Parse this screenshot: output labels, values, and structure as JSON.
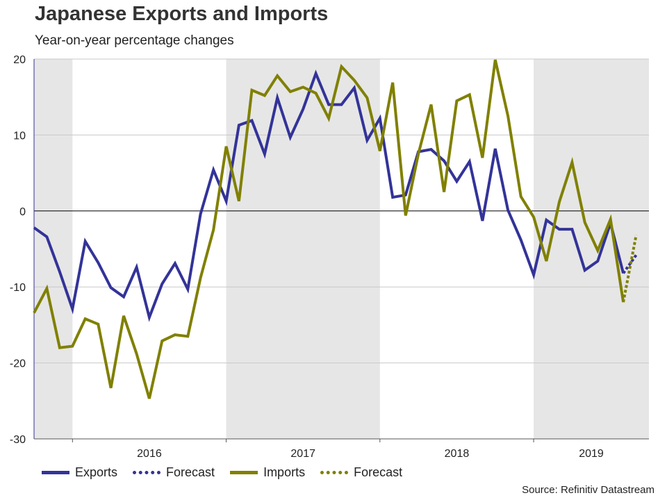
{
  "title": "Japanese Exports and Imports",
  "subtitle": "Year-on-year percentage changes",
  "source": "Source: Refinitiv Datastream",
  "colors": {
    "exports": "#333399",
    "imports": "#808000",
    "shade": "#e6e6e6"
  },
  "legend": [
    {
      "label": "Exports",
      "series": "exports",
      "style": "solid"
    },
    {
      "label": "Forecast",
      "series": "exports",
      "style": "dotted"
    },
    {
      "label": "Imports",
      "series": "imports",
      "style": "solid"
    },
    {
      "label": "Forecast",
      "series": "imports",
      "style": "dotted"
    }
  ],
  "chart_data": {
    "type": "line",
    "title": "Japanese Exports and Imports",
    "subtitle": "Year-on-year percentage changes",
    "ylim": [
      -30,
      20
    ],
    "yticks": [
      20,
      10,
      0,
      -10,
      -20,
      -30
    ],
    "xlim": [
      2015.75,
      2019.75
    ],
    "x_ticks": [
      2016,
      2017,
      2018,
      2019
    ],
    "x_tick_labels": [
      "2016",
      "2017",
      "2018",
      "2019"
    ],
    "shaded_ranges": [
      [
        2015.75,
        2016
      ],
      [
        2017,
        2018
      ],
      [
        2019,
        2019.75
      ]
    ],
    "grid": true,
    "legend_position": "bottom",
    "x": [
      2015.75,
      2015.833,
      2015.917,
      2016.0,
      2016.083,
      2016.167,
      2016.25,
      2016.333,
      2016.417,
      2016.5,
      2016.583,
      2016.667,
      2016.75,
      2016.833,
      2016.917,
      2017.0,
      2017.083,
      2017.167,
      2017.25,
      2017.333,
      2017.417,
      2017.5,
      2017.583,
      2017.667,
      2017.75,
      2017.833,
      2017.917,
      2018.0,
      2018.083,
      2018.167,
      2018.25,
      2018.333,
      2018.417,
      2018.5,
      2018.583,
      2018.667,
      2018.75,
      2018.833,
      2018.917,
      2019.0,
      2019.083,
      2019.167,
      2019.25,
      2019.333,
      2019.417,
      2019.5,
      2019.583
    ],
    "series": [
      {
        "name": "Exports",
        "color": "#333399",
        "style": "solid",
        "values": [
          -2.2,
          -3.4,
          -8.0,
          -12.9,
          -4.0,
          -6.8,
          -10.1,
          -11.3,
          -7.4,
          -14.0,
          -9.6,
          -6.9,
          -10.3,
          -0.4,
          5.4,
          1.3,
          11.3,
          11.9,
          7.5,
          14.9,
          9.7,
          13.4,
          18.1,
          14.0,
          14.0,
          16.2,
          9.3,
          12.2,
          1.8,
          2.1,
          7.8,
          8.1,
          6.6,
          3.9,
          6.5,
          -1.3,
          8.2,
          0.1,
          -3.8,
          -8.4,
          -1.2,
          -2.4,
          -2.4,
          -7.8,
          -6.6,
          -1.6,
          -8.2
        ]
      },
      {
        "name": "Exports Forecast",
        "color": "#333399",
        "style": "dotted",
        "points": [
          [
            2019.583,
            -8.2
          ],
          [
            2019.667,
            -5.8
          ]
        ]
      },
      {
        "name": "Imports",
        "color": "#808000",
        "style": "solid",
        "values": [
          -13.4,
          -10.2,
          -18.0,
          -17.8,
          -14.2,
          -14.9,
          -23.3,
          -13.8,
          -18.8,
          -24.7,
          -17.1,
          -16.3,
          -16.5,
          -8.8,
          -2.5,
          8.5,
          1.3,
          15.9,
          15.2,
          17.8,
          15.7,
          16.3,
          15.5,
          12.2,
          19.0,
          17.2,
          14.9,
          7.9,
          16.9,
          -0.6,
          7.5,
          14.0,
          2.5,
          14.5,
          15.3,
          7.0,
          19.9,
          12.5,
          1.9,
          -0.8,
          -6.6,
          1.2,
          6.4,
          -1.5,
          -5.2,
          -1.1,
          -12.0
        ]
      },
      {
        "name": "Imports Forecast",
        "color": "#808000",
        "style": "dotted",
        "points": [
          [
            2019.583,
            -12.0
          ],
          [
            2019.667,
            -3.2
          ]
        ]
      }
    ]
  }
}
